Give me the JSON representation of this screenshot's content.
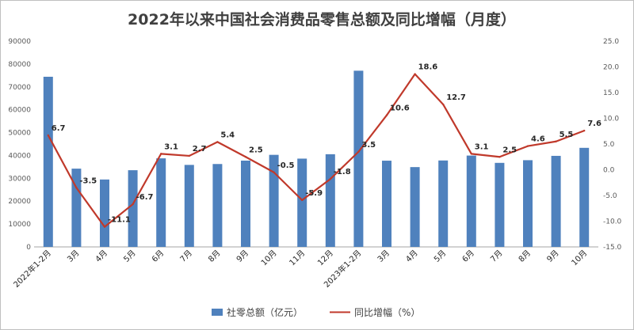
{
  "chart_data": {
    "type": "bar",
    "title": "2022年以来中国社会消费品零售总额及同比增幅（月度）",
    "categories": [
      "2022年1-2月",
      "3月",
      "4月",
      "5月",
      "6月",
      "7月",
      "8月",
      "9月",
      "10月",
      "11月",
      "12月",
      "2023年1-2月",
      "3月",
      "4月",
      "5月",
      "6月",
      "7月",
      "8月",
      "9月",
      "10月"
    ],
    "series": [
      {
        "name": "社零总额（亿元）",
        "type": "bar",
        "axis": "left",
        "color": "#4f81bd",
        "values": [
          74426,
          34233,
          29483,
          33547,
          38742,
          35870,
          36258,
          37745,
          40271,
          38615,
          40542,
          77067,
          37715,
          34910,
          37803,
          39951,
          36761,
          37933,
          39826,
          43333
        ]
      },
      {
        "name": "同比增幅（%）",
        "type": "line",
        "axis": "right",
        "color": "#c0392b",
        "values": [
          6.7,
          -3.5,
          -11.1,
          -6.7,
          3.1,
          2.7,
          5.4,
          2.5,
          -0.5,
          -5.9,
          -1.8,
          3.5,
          10.6,
          18.6,
          12.7,
          3.1,
          2.5,
          4.6,
          5.5,
          7.6
        ],
        "labels": [
          "6.7",
          "-3.5",
          "-11.1",
          "-6.7",
          "3.1",
          "2.7",
          "5.4",
          "2.5",
          "-0.5",
          "-5.9",
          "-1.8",
          "3.5",
          "10.6",
          "18.6",
          "12.7",
          "3.1",
          "2.5",
          "4.6",
          "5.5",
          "7.6"
        ]
      }
    ],
    "left_axis": {
      "ylim": [
        0,
        90000
      ],
      "ticks": [
        "0",
        "10000",
        "20000",
        "30000",
        "40000",
        "50000",
        "60000",
        "70000",
        "80000",
        "90000"
      ]
    },
    "right_axis": {
      "ylim": [
        -15,
        25
      ],
      "ticks": [
        "-15.0",
        "-10.0",
        "-5.0",
        "0.0",
        "5.0",
        "10.0",
        "15.0",
        "20.0",
        "25.0"
      ]
    },
    "grid": false,
    "legend_position": "bottom"
  }
}
